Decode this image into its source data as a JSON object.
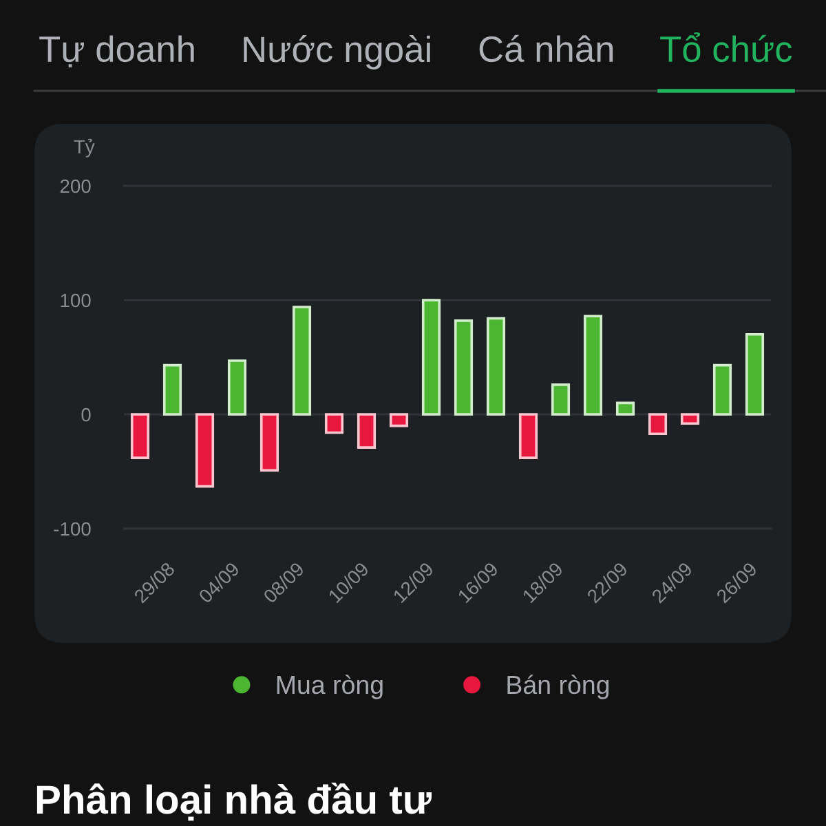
{
  "chart_data": {
    "type": "bar",
    "title": "Tổ chức",
    "ylabel": "Tỷ",
    "annotations": [
      "Tự doanh",
      "Nước ngoài",
      "Cá nhân",
      "Phân loại nhà đầu tư"
    ],
    "categories": [
      null,
      "29/08",
      null,
      "04/09",
      null,
      "08/09",
      null,
      "10/09",
      null,
      "12/09",
      null,
      "16/09",
      null,
      "18/09",
      null,
      "22/09",
      null,
      "24/09",
      null,
      "26/09"
    ],
    "series": [
      {
        "name": "Mua ròng",
        "color": "#4cb632",
        "values": [
          null,
          43,
          null,
          47,
          null,
          94,
          null,
          null,
          null,
          100,
          82,
          84,
          null,
          26,
          86,
          10,
          null,
          null,
          43,
          70
        ]
      },
      {
        "name": "Bán ròng",
        "color": "#e8173e",
        "values": [
          -38,
          null,
          -63,
          null,
          -49,
          null,
          -16,
          -29,
          -10,
          null,
          null,
          null,
          -38,
          null,
          null,
          null,
          -17,
          -8,
          null,
          null
        ]
      }
    ],
    "ylim": [
      -100,
      200
    ],
    "yticks": [
      -100,
      0,
      100,
      200
    ],
    "grid": "y",
    "legend": "bottom"
  }
}
